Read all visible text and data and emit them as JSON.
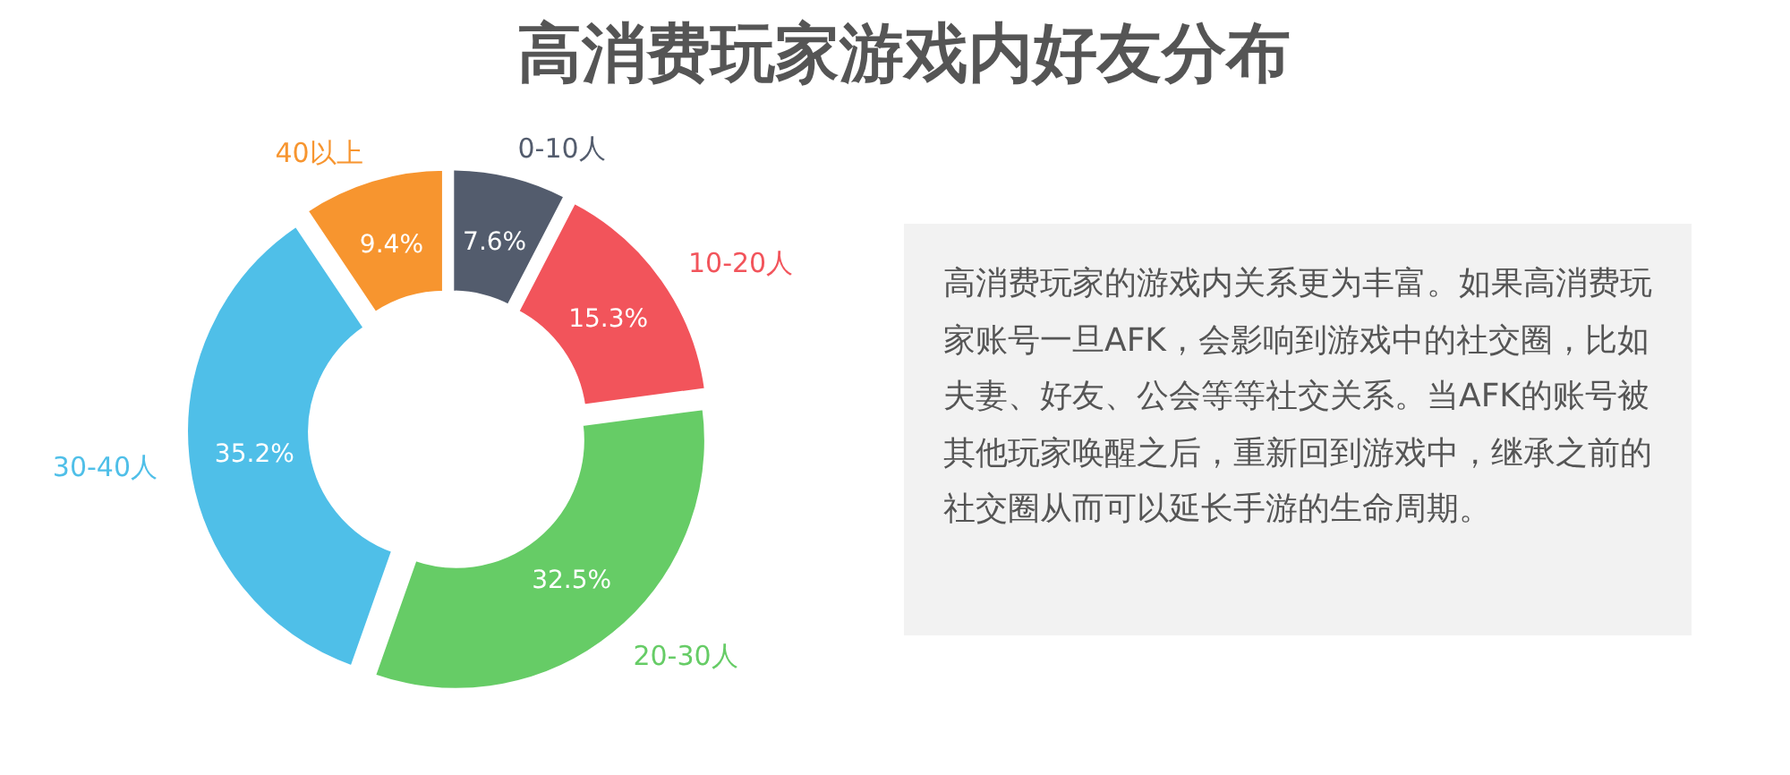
{
  "chart_data": [
    {
      "type": "donut",
      "title": "高消费玩家游戏内好友分布",
      "categories": [
        "0-10人",
        "10-20人",
        "20-30人",
        "30-40人",
        "40以上"
      ],
      "values": [
        7.6,
        15.3,
        32.5,
        35.2,
        9.4
      ],
      "colors": [
        "#535c6d",
        "#f2545b",
        "#66cc66",
        "#4fbfe8",
        "#f7952f"
      ],
      "value_labels": [
        "7.6%",
        "15.3%",
        "32.5%",
        "35.2%",
        "9.4%"
      ]
    },
    {
      "type": "other",
      "annotations": [
        "高消费玩家的游戏内关系更为丰富。如果高消费玩家账号一旦AFK，会影响到游戏中的社交圈，比如夫妻、好友、公会等等社交关系。当AFK的账号被其他玩家唤醒之后，重新回到游戏中，继承之前的社交圈从而可以延长手游的生命周期。"
      ]
    }
  ]
}
